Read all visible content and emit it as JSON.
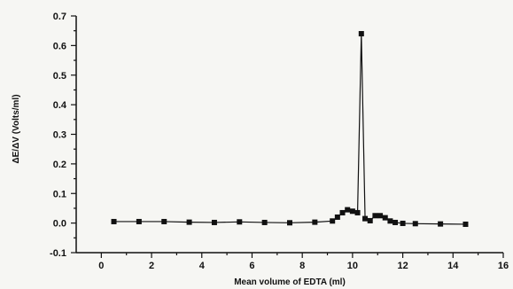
{
  "chart_data": {
    "type": "scatter",
    "title": "",
    "xlabel": "Mean volume of EDTA (ml)",
    "ylabel": "ΔE/ΔV (Volts/ml)",
    "xlim": [
      -1,
      16
    ],
    "ylim": [
      -0.1,
      0.7
    ],
    "xticks": [
      0,
      2,
      4,
      6,
      8,
      10,
      12,
      14,
      16
    ],
    "yticks": [
      -0.1,
      0.0,
      0.1,
      0.2,
      0.3,
      0.4,
      0.5,
      0.6,
      0.7
    ],
    "x_tick_labels": [
      "0",
      "2",
      "4",
      "6",
      "8",
      "10",
      "12",
      "14",
      "16"
    ],
    "y_tick_labels": [
      "-0.1",
      "0.0",
      "0.1",
      "0.2",
      "0.3",
      "0.4",
      "0.5",
      "0.6",
      "0.7"
    ],
    "grid": false,
    "series": [
      {
        "points": [
          [
            0.5,
            0.005
          ],
          [
            1.5,
            0.005
          ],
          [
            2.5,
            0.005
          ],
          [
            3.5,
            0.003
          ],
          [
            4.5,
            0.002
          ],
          [
            5.5,
            0.004
          ],
          [
            6.5,
            0.002
          ],
          [
            7.5,
            0.001
          ],
          [
            8.5,
            0.003
          ],
          [
            9.2,
            0.007
          ],
          [
            9.4,
            0.02
          ],
          [
            9.6,
            0.035
          ],
          [
            9.8,
            0.045
          ],
          [
            10.0,
            0.04
          ],
          [
            10.2,
            0.035
          ],
          [
            10.35,
            0.64
          ],
          [
            10.5,
            0.015
          ],
          [
            10.7,
            0.008
          ],
          [
            10.9,
            0.025
          ],
          [
            11.1,
            0.025
          ],
          [
            11.3,
            0.018
          ],
          [
            11.5,
            0.007
          ],
          [
            11.7,
            0.002
          ],
          [
            12.0,
            -0.001
          ],
          [
            12.5,
            -0.002
          ],
          [
            13.5,
            -0.003
          ],
          [
            14.5,
            -0.004
          ]
        ]
      }
    ]
  }
}
